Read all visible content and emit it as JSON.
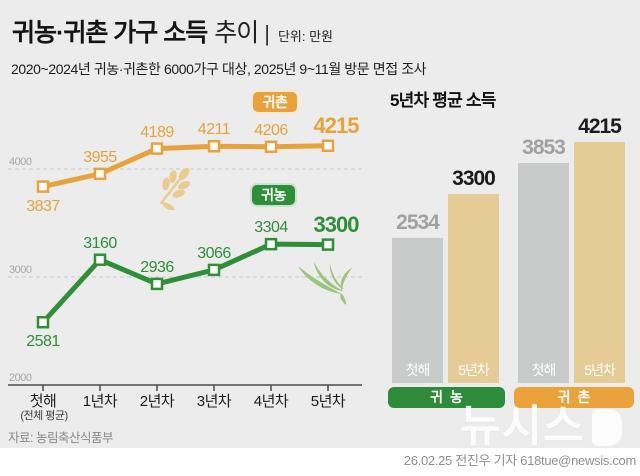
{
  "header": {
    "title_strong": "귀농·귀촌 가구 소득",
    "title_light": "추이",
    "title_divider": "|",
    "unit": "단위: 만원",
    "subtitle": "2020~2024년 귀농·귀촌한 6000가구 대상, 2025년 9~11월 방문 면접 조사"
  },
  "colors": {
    "orange": "#E8A23D",
    "green": "#2E8F38",
    "bar_tan": "#E5CC96",
    "bar_gray": "#C9CBCA",
    "gray_value_label": "#9FA2A1",
    "black_value_label": "#1B1B1B",
    "background": "#ECECEC"
  },
  "chart_data": [
    {
      "type": "line",
      "title": "귀농·귀촌 가구 소득 추이",
      "unit": "만원",
      "categories": [
        "첫해",
        "1년차",
        "2년차",
        "3년차",
        "4년차",
        "5년차"
      ],
      "first_category_note": "(전체 평균)",
      "y_ticks": [
        2000,
        3000,
        4000
      ],
      "ylim": [
        2000,
        4400
      ],
      "grid": "horizontal-dashed",
      "legend_position": "inline-badges",
      "series": [
        {
          "name": "귀촌",
          "color": "#E8A23D",
          "values": [
            3837,
            3955,
            4189,
            4211,
            4206,
            4215
          ]
        },
        {
          "name": "귀농",
          "color": "#2E8F38",
          "values": [
            2581,
            3160,
            2936,
            3066,
            3304,
            3300
          ]
        }
      ]
    },
    {
      "type": "bar",
      "title": "5년차 평균 소득",
      "ylim": [
        0,
        4400
      ],
      "groups": [
        {
          "name": "귀농",
          "pill_color": "#2E8B3A",
          "bars": [
            {
              "label": "첫해",
              "value": 2534,
              "color": "#C9CBCA",
              "value_color": "#9FA2A1"
            },
            {
              "label": "5년차",
              "value": 3300,
              "color": "#E5CC96",
              "value_color": "#1B1B1B"
            }
          ]
        },
        {
          "name": "귀촌",
          "pill_color": "#E9A23C",
          "bars": [
            {
              "label": "첫해",
              "value": 3853,
              "color": "#C9CBCA",
              "value_color": "#9FA2A1"
            },
            {
              "label": "5년차",
              "value": 4215,
              "color": "#E5CC96",
              "value_color": "#1B1B1B"
            }
          ]
        }
      ]
    }
  ],
  "icons": {
    "wheat": "wheat-grain-icon",
    "grass": "rice-seedling-icon",
    "newsis": "newsis-logo"
  },
  "footer": {
    "source": "자료: 농림축산식품부",
    "watermark": "뉴시스",
    "credit": "26.02.25 전진우 기자 618tue@newsis.com"
  }
}
